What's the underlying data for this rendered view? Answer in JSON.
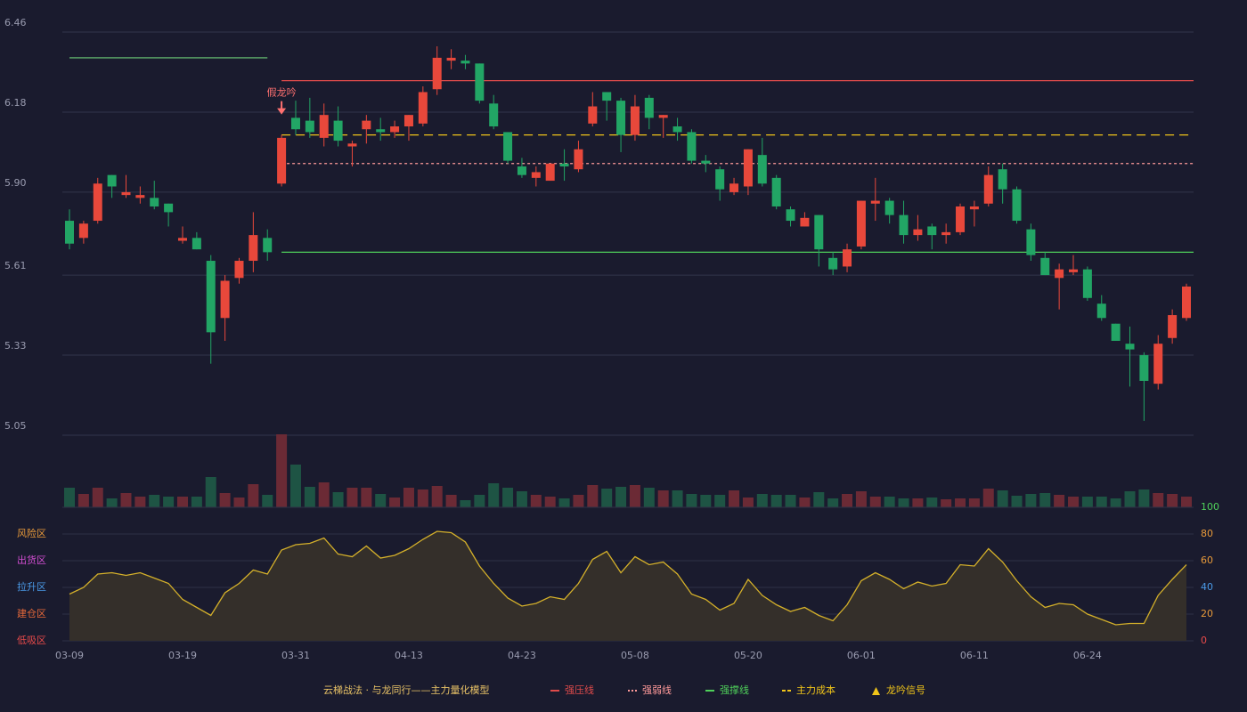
{
  "chart_data": [
    {
      "type": "candlestick",
      "categories": [
        "03-09",
        null,
        null,
        null,
        null,
        null,
        null,
        null,
        "03-19",
        null,
        null,
        null,
        null,
        null,
        null,
        null,
        "03-31",
        null,
        null,
        null,
        null,
        null,
        null,
        null,
        "04-13",
        null,
        null,
        null,
        null,
        null,
        null,
        null,
        "04-23",
        null,
        null,
        null,
        null,
        null,
        null,
        null,
        "05-08",
        null,
        null,
        null,
        null,
        null,
        null,
        null,
        "05-20",
        null,
        null,
        null,
        null,
        null,
        null,
        null,
        "06-01",
        null,
        null,
        null,
        null,
        null,
        null,
        null,
        "06-11",
        null,
        null,
        null,
        null,
        null,
        null,
        null,
        "06-24",
        null,
        null,
        null,
        null,
        null,
        null,
        null
      ],
      "open": [
        5.8,
        5.74,
        5.8,
        5.96,
        5.89,
        5.88,
        5.88,
        5.86,
        5.73,
        5.74,
        5.66,
        5.46,
        5.6,
        5.66,
        5.74,
        5.93,
        6.16,
        6.15,
        6.09,
        6.15,
        6.06,
        6.12,
        6.12,
        6.11,
        6.13,
        6.14,
        6.26,
        6.36,
        6.36,
        6.35,
        6.21,
        6.11,
        5.99,
        5.95,
        5.94,
        6.0,
        5.98,
        6.14,
        6.25,
        6.22,
        6.1,
        6.23,
        6.16,
        6.13,
        6.11,
        6.01,
        5.98,
        5.9,
        5.92,
        6.03,
        5.95,
        5.84,
        5.78,
        5.82,
        5.67,
        5.64,
        5.71,
        5.86,
        5.87,
        5.82,
        5.75,
        5.78,
        5.75,
        5.76,
        5.84,
        5.86,
        5.98,
        5.91,
        5.77,
        5.67,
        5.6,
        5.62,
        5.63,
        5.51,
        5.44,
        5.37,
        5.33,
        5.23,
        5.39,
        5.46
      ],
      "close": [
        5.72,
        5.79,
        5.93,
        5.92,
        5.9,
        5.89,
        5.85,
        5.83,
        5.74,
        5.7,
        5.41,
        5.59,
        5.66,
        5.75,
        5.69,
        6.09,
        6.12,
        6.11,
        6.17,
        6.08,
        6.07,
        6.15,
        6.11,
        6.13,
        6.17,
        6.25,
        6.37,
        6.37,
        6.35,
        6.22,
        6.13,
        6.01,
        5.96,
        5.97,
        6.0,
        5.99,
        6.05,
        6.2,
        6.22,
        6.1,
        6.2,
        6.16,
        6.17,
        6.11,
        6.01,
        6.0,
        5.91,
        5.93,
        6.05,
        5.93,
        5.85,
        5.8,
        5.81,
        5.7,
        5.63,
        5.7,
        5.87,
        5.87,
        5.82,
        5.75,
        5.77,
        5.75,
        5.76,
        5.85,
        5.85,
        5.96,
        5.91,
        5.8,
        5.68,
        5.61,
        5.63,
        5.63,
        5.53,
        5.46,
        5.38,
        5.35,
        5.24,
        5.37,
        5.47,
        5.57
      ],
      "high": [
        5.84,
        5.8,
        5.95,
        5.96,
        5.96,
        5.92,
        5.94,
        5.86,
        5.78,
        5.76,
        5.68,
        5.61,
        5.67,
        5.83,
        5.77,
        6.1,
        6.22,
        6.23,
        6.21,
        6.2,
        6.08,
        6.17,
        6.16,
        6.15,
        6.17,
        6.27,
        6.41,
        6.4,
        6.38,
        6.35,
        6.24,
        6.11,
        6.02,
        5.99,
        6.0,
        6.05,
        6.08,
        6.25,
        6.25,
        6.23,
        6.24,
        6.24,
        6.17,
        6.16,
        6.12,
        6.03,
        5.99,
        5.95,
        6.05,
        6.09,
        5.96,
        5.85,
        5.83,
        5.82,
        5.69,
        5.72,
        5.87,
        5.95,
        5.88,
        5.87,
        5.82,
        5.79,
        5.79,
        5.86,
        5.87,
        5.99,
        6.0,
        5.92,
        5.79,
        5.69,
        5.65,
        5.68,
        5.64,
        5.54,
        5.44,
        5.43,
        5.34,
        5.4,
        5.49,
        5.58
      ],
      "low": [
        5.7,
        5.72,
        5.79,
        5.88,
        5.88,
        5.86,
        5.84,
        5.78,
        5.72,
        5.7,
        5.3,
        5.38,
        5.58,
        5.62,
        5.66,
        5.92,
        6.1,
        6.09,
        6.06,
        6.06,
        5.99,
        6.07,
        6.08,
        6.09,
        6.08,
        6.13,
        6.24,
        6.33,
        6.33,
        6.21,
        6.12,
        6.0,
        5.95,
        5.92,
        5.94,
        5.94,
        5.97,
        6.13,
        6.15,
        6.04,
        6.08,
        6.12,
        6.09,
        6.08,
        6.0,
        5.97,
        5.87,
        5.89,
        5.89,
        5.92,
        5.84,
        5.78,
        5.78,
        5.64,
        5.61,
        5.62,
        5.7,
        5.8,
        5.79,
        5.72,
        5.73,
        5.7,
        5.72,
        5.75,
        5.78,
        5.85,
        5.86,
        5.79,
        5.66,
        5.61,
        5.49,
        5.61,
        5.52,
        5.45,
        5.38,
        5.22,
        5.1,
        5.21,
        5.37,
        5.45
      ],
      "up_color": "#e8483b",
      "down_color": "#22a565",
      "ylim": [
        5.05,
        6.46
      ],
      "yticks": [
        5.05,
        5.33,
        5.61,
        {
          "value": 5.9,
          "label": "5.90"
        },
        6.18,
        6.46
      ],
      "grid": true,
      "levels": [
        {
          "name": "强压线",
          "color": "#e04b4b",
          "style": "solid",
          "value": 6.29,
          "from": 15
        },
        {
          "name": "强弱线",
          "color": "#ff9a9a",
          "style": "dotted",
          "value": 6.0,
          "from": 15
        },
        {
          "name": "强撑线",
          "color": "#4fd05a",
          "style": "solid",
          "value": 5.69,
          "from": 15
        },
        {
          "name": "主力成本",
          "color": "#f0c419",
          "style": "dashed",
          "value": 6.1,
          "from": 15
        },
        {
          "color": "#6fd07a",
          "style": "solid",
          "value": 6.37,
          "from": 0,
          "to": 14
        }
      ],
      "signal": {
        "name": "龙吟信号",
        "label": "假龙吟",
        "index": 15,
        "color": "#ff7070",
        "legend_color": "#f0c419"
      },
      "legend": {
        "title": "云梯战法 · 与龙同行——主力量化模型",
        "color": "#e8c266"
      }
    },
    {
      "type": "bar",
      "values": [
        22,
        15,
        22,
        10,
        16,
        12,
        14,
        12,
        12,
        12,
        34,
        16,
        11,
        26,
        14,
        82,
        48,
        23,
        28,
        17,
        22,
        22,
        15,
        11,
        22,
        20,
        24,
        14,
        8,
        14,
        27,
        22,
        18,
        14,
        12,
        10,
        14,
        25,
        21,
        23,
        25,
        22,
        19,
        19,
        15,
        14,
        14,
        19,
        11,
        15,
        14,
        14,
        11,
        17,
        10,
        15,
        18,
        12,
        12,
        10,
        10,
        11,
        9,
        10,
        10,
        21,
        19,
        13,
        15,
        16,
        14,
        12,
        12,
        12,
        10,
        18,
        20,
        16,
        15,
        12
      ],
      "up_color": "#6b2a35",
      "down_color": "#1e5444"
    },
    {
      "type": "area",
      "values": [
        35,
        40,
        50,
        51,
        49,
        51,
        47,
        43,
        31,
        25,
        19,
        36,
        43,
        53,
        50,
        68,
        72,
        73,
        77,
        65,
        63,
        71,
        62,
        64,
        69,
        76,
        82,
        81,
        74,
        56,
        43,
        32,
        26,
        28,
        33,
        31,
        43,
        61,
        67,
        51,
        63,
        57,
        59,
        50,
        35,
        31,
        23,
        28,
        46,
        34,
        27,
        22,
        25,
        19,
        15,
        27,
        45,
        51,
        46,
        39,
        44,
        41,
        43,
        57,
        56,
        69,
        59,
        45,
        33,
        25,
        28,
        27,
        20,
        16,
        12,
        13,
        13,
        34,
        46,
        57
      ],
      "color": "#d4b02a",
      "fill": "#342f2a",
      "ylim": [
        0,
        100
      ],
      "yticks": [
        0,
        20,
        40,
        60,
        80,
        100
      ],
      "ytick_colors": [
        "#e84a4a",
        "#e89a3a",
        "#4a9ae8",
        "#e89a3a",
        "#e89a3a",
        "#4fd05a"
      ],
      "zones": [
        {
          "label": "风险区",
          "value": 80,
          "color": "#e89a3a"
        },
        {
          "label": "出货区",
          "value": 60,
          "color": "#d14ed1"
        },
        {
          "label": "拉升区",
          "value": 40,
          "color": "#4a9ae8"
        },
        {
          "label": "建仓区",
          "value": 20,
          "color": "#e86a3a"
        },
        {
          "label": "低吸区",
          "value": 0,
          "color": "#e84a4a"
        }
      ]
    }
  ]
}
